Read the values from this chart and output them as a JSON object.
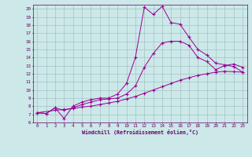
{
  "bg_color": "#cce8e8",
  "grid_color": "#99bbbb",
  "line_color": "#990099",
  "xlabel": "Windchill (Refroidissement éolien,°C)",
  "xlim": [
    -0.5,
    23.5
  ],
  "ylim": [
    6,
    20.5
  ],
  "xticks": [
    0,
    1,
    2,
    3,
    4,
    5,
    6,
    7,
    8,
    9,
    10,
    11,
    12,
    13,
    14,
    15,
    16,
    17,
    18,
    19,
    20,
    21,
    22,
    23
  ],
  "yticks": [
    6,
    7,
    8,
    9,
    10,
    11,
    12,
    13,
    14,
    15,
    16,
    17,
    18,
    19,
    20
  ],
  "curve1_x": [
    0,
    1,
    2,
    3,
    4,
    5,
    6,
    7,
    8,
    9,
    10,
    11,
    12,
    13,
    14,
    15,
    16,
    17,
    18,
    19,
    20,
    21,
    22,
    23
  ],
  "curve1_y": [
    7.2,
    7.1,
    7.8,
    6.5,
    8.0,
    8.5,
    8.8,
    9.0,
    9.0,
    9.5,
    10.8,
    14.0,
    20.2,
    19.3,
    20.3,
    18.3,
    18.1,
    16.5,
    15.0,
    14.3,
    13.3,
    13.1,
    12.9,
    12.2
  ],
  "curve2_x": [
    0,
    1,
    2,
    3,
    4,
    5,
    6,
    7,
    8,
    9,
    10,
    11,
    12,
    13,
    14,
    15,
    16,
    17,
    18,
    19,
    20,
    21,
    22,
    23
  ],
  "curve2_y": [
    7.2,
    7.1,
    7.8,
    7.5,
    7.8,
    8.2,
    8.5,
    8.8,
    8.9,
    9.0,
    9.5,
    10.5,
    12.8,
    14.5,
    15.8,
    16.0,
    16.0,
    15.5,
    14.0,
    13.5,
    12.5,
    13.0,
    13.2,
    12.8
  ],
  "curve3_x": [
    0,
    2,
    3,
    4,
    5,
    6,
    7,
    8,
    9,
    10,
    11,
    12,
    13,
    14,
    15,
    16,
    17,
    18,
    19,
    20,
    21,
    22,
    23
  ],
  "curve3_y": [
    7.2,
    7.5,
    7.6,
    7.7,
    7.9,
    8.0,
    8.2,
    8.4,
    8.6,
    8.9,
    9.2,
    9.6,
    10.0,
    10.4,
    10.8,
    11.2,
    11.5,
    11.8,
    12.0,
    12.2,
    12.3,
    12.25,
    12.2
  ]
}
